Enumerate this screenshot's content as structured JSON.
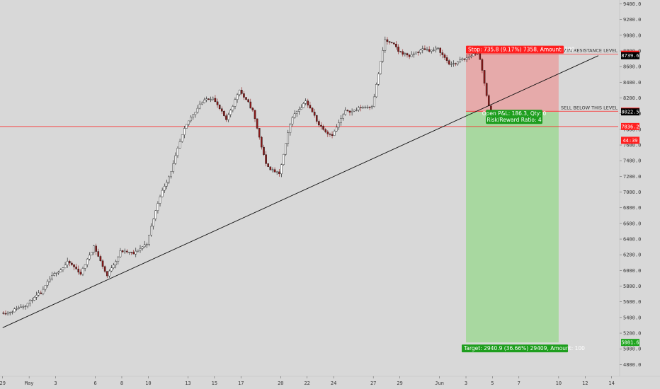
{
  "chart_data": {
    "type": "candlestick",
    "y_range": [
      4650,
      9450
    ],
    "y_ticks": [
      "4800.0",
      "5000.0",
      "5200.0",
      "5400.0",
      "5600.0",
      "5800.0",
      "6000.0",
      "6200.0",
      "6400.0",
      "6600.0",
      "6800.0",
      "7000.0",
      "7200.0",
      "7400.0",
      "7600.0",
      "7800.0",
      "8000.0",
      "8200.0",
      "8400.0",
      "8600.0",
      "8800.0",
      "9000.0",
      "9200.0",
      "9400.0"
    ],
    "x_range": [
      -0.2,
      46.5
    ],
    "x_ticks": [
      {
        "label": "29",
        "day": 0
      },
      {
        "label": "May",
        "day": 2
      },
      {
        "label": "3",
        "day": 4
      },
      {
        "label": "6",
        "day": 7
      },
      {
        "label": "8",
        "day": 9
      },
      {
        "label": "10",
        "day": 11
      },
      {
        "label": "13",
        "day": 14
      },
      {
        "label": "15",
        "day": 16
      },
      {
        "label": "17",
        "day": 18
      },
      {
        "label": "20",
        "day": 21
      },
      {
        "label": "22",
        "day": 23
      },
      {
        "label": "24",
        "day": 25
      },
      {
        "label": "27",
        "day": 28
      },
      {
        "label": "29",
        "day": 30
      },
      {
        "label": "Jun",
        "day": 33
      },
      {
        "label": "3",
        "day": 35
      },
      {
        "label": "5",
        "day": 37
      },
      {
        "label": "7",
        "day": 39
      },
      {
        "label": "10",
        "day": 42
      },
      {
        "label": "12",
        "day": 44
      },
      {
        "label": "14",
        "day": 46
      }
    ],
    "candles_per_day": 6,
    "daily_closes": [
      5500,
      5580,
      5710,
      5950,
      6100,
      5960,
      6310,
      5930,
      6240,
      6210,
      6350,
      6960,
      7350,
      7850,
      8130,
      8220,
      7900,
      8320,
      8030,
      7350,
      7220,
      7970,
      8180,
      7860,
      7740,
      8020,
      8060,
      8110,
      8940,
      8800,
      8730,
      8830,
      8820,
      8610,
      8690,
      8800,
      7950
    ],
    "trendline": {
      "start": {
        "day": 0,
        "price": 5270
      },
      "end": {
        "day": 45,
        "price": 8740
      }
    },
    "levels": [
      {
        "name": "main-resistance",
        "price": 8758.3,
        "label": "MAIN RESISTANCE LEVEL",
        "tag": "8758.3",
        "color": "#ff1f1f"
      },
      {
        "name": "sell-below",
        "price": 8031.1,
        "label": "SELL BELOW THIS LEVEL",
        "tag": "8031.1",
        "color": "#ff1f1f"
      },
      {
        "name": "current-price",
        "price": 7836.2,
        "label": "",
        "tag": "7836.2",
        "color": "#ff1f1f"
      }
    ],
    "price_tags": [
      {
        "name": "high-price",
        "price": 8739.6,
        "text": "8739.6",
        "color": "#000000"
      },
      {
        "name": "entry-price",
        "price": 8022.5,
        "text": "8022.5",
        "color": "#000000"
      },
      {
        "name": "countdown",
        "price": 7660,
        "text": "44:39",
        "color": "#ff1f1f"
      },
      {
        "name": "target-price",
        "price": 5081.6,
        "text": "5081.6",
        "color": "#1ea51e"
      }
    ],
    "position": {
      "entry": 8022.5,
      "stop": 8758.3,
      "target": 5081.6,
      "start_day": 35,
      "end_day": 42,
      "stop_label": "Stop: 735.8 (9.17%) 7358, Amount: 100",
      "target_label": "Target: 2940.9 (36.66%) 29409, Amount: 100",
      "open_pl_label": "Open P&L: 186.3, Qty: 0",
      "rr_label": "Risk/Reward Ratio: 4"
    },
    "colors": {
      "bg": "#d8d8d8",
      "up": "#ffffff",
      "down": "#8e1818",
      "wick": "#111111",
      "stop_zone": "#e6aaaa",
      "target_zone": "#a8d8a0",
      "stop_box": "#ff1f1f",
      "target_box": "#1e9e1e",
      "trendline": "#111111"
    }
  }
}
